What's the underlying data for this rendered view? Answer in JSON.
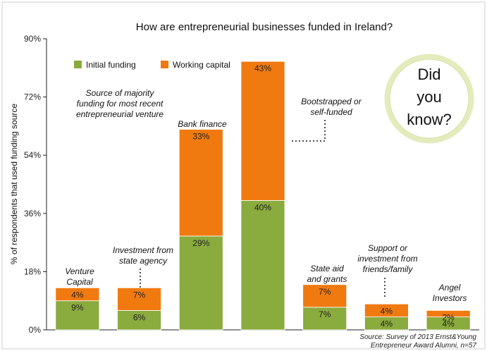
{
  "chart_data": {
    "type": "bar",
    "stacked": true,
    "title": "How are entrepreneurial businesses funded in Ireland?",
    "ylabel": "% of respondents that used funding source",
    "ylim": [
      0,
      90
    ],
    "yticks": [
      "0%",
      "18%",
      "36%",
      "54%",
      "72%",
      "90%"
    ],
    "grid": false,
    "legend_position": "top-left",
    "categories": [
      "Venture Capital",
      "Investment from state agency",
      "Bank finance",
      "Bootstrapped or self-funded",
      "State aid and grants",
      "Support or investment from friends/family",
      "Angel Investors"
    ],
    "series": [
      {
        "name": "Initial funding",
        "color": "#8aab3d",
        "values": [
          9,
          6,
          29,
          40,
          7,
          4,
          4
        ],
        "labels": [
          "9%",
          "6%",
          "29%",
          "40%",
          "7%",
          "4%",
          "4%"
        ]
      },
      {
        "name": "Working capital",
        "color": "#f07a10",
        "values": [
          4,
          7,
          33,
          43,
          7,
          4,
          2
        ],
        "labels": [
          "4%",
          "7%",
          "33%",
          "43%",
          "7%",
          "4%",
          "2%"
        ]
      }
    ]
  },
  "annotations": {
    "majority_note": [
      "Source of majority",
      "funding for most recent",
      "entrepreneurial venture"
    ],
    "venture_capital": [
      "Venture",
      "Capital"
    ],
    "state_agency": [
      "Investment from",
      "state agency"
    ],
    "bank_finance": [
      "Bank finance"
    ],
    "bootstrapped": [
      "Bootstrapped or",
      "self-funded"
    ],
    "state_aid": [
      "State aid",
      "and grants"
    ],
    "friends_family": [
      "Support or",
      "investment from",
      "friends/family"
    ],
    "angel": [
      "Angel",
      "Investors"
    ]
  },
  "callout": {
    "lines": [
      "Did",
      "you",
      "know?"
    ]
  },
  "source": [
    "Source: Survey of 2013 Ernst&Young",
    "Entrepreneur Award Alumni, n=57"
  ]
}
